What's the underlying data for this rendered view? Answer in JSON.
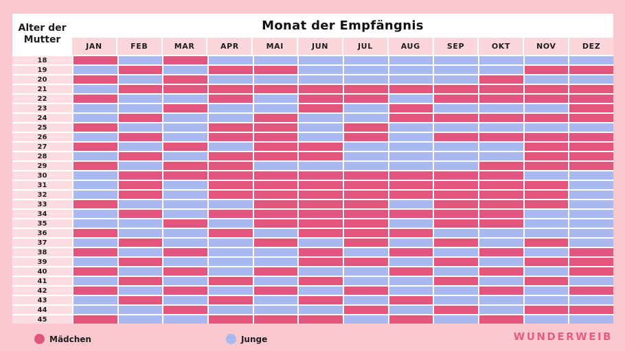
{
  "title": "Monat der Empfängnis",
  "row_header": "Alter der Mutter",
  "legend": {
    "girl_label": "Mädchen",
    "boy_label": "Junge"
  },
  "brand": "WUNDERWEIB",
  "colors": {
    "girl": "#e2557c",
    "boy": "#a9b9ef",
    "page_bg": "#f9c7ce",
    "month_band": "#fbd6da",
    "age_column": "#fcdee2",
    "brand_text": "#e85c80"
  },
  "chart_data": {
    "type": "heatmap",
    "title": "Monat der Empfängnis",
    "x_label": "Monat der Empfängnis",
    "y_label": "Alter der Mutter",
    "columns": [
      "JAN",
      "FEB",
      "MAR",
      "APR",
      "MAI",
      "JUN",
      "JUL",
      "AUG",
      "SEP",
      "OKT",
      "NOV",
      "DEZ"
    ],
    "rows": [
      18,
      19,
      20,
      21,
      22,
      23,
      24,
      25,
      26,
      27,
      28,
      29,
      30,
      31,
      32,
      33,
      34,
      35,
      36,
      37,
      38,
      39,
      40,
      41,
      42,
      43,
      44,
      45
    ],
    "cell_legend": {
      "M": "Mädchen",
      "J": "Junge"
    },
    "values": [
      "MJMJJJJJJJJJ",
      "JMJMMJJJJJMM",
      "MJMJJJJJJMJJ",
      "JMMMMMMMMMMM",
      "MJJMJMMJMMMM",
      "JJMJJMJMJJJM",
      "JMJJMJJMMMMM",
      "MJJMMJMJJJJJ",
      "JMJMMJMJMMMM",
      "MJMJMMJJJJMM",
      "JMJMMMJJJJMM",
      "MJMMJJJJJMMM",
      "JMMMMMMMMMJJ",
      "JMJMMMMMMMMJ",
      "JMJMMMMMMMMJ",
      "MJJJMMMJMMMJ",
      "JMJMMMMMMMJJ",
      "JJMJMMMJMMJJ",
      "MJJMJMMMJJJJ",
      "JMJJMJMJMJMJ",
      "MJMJJMJMJMJM",
      "JMJJJMMJMJMM",
      "MJMJMJJMJMJM",
      "JMJMJMJJMJMJ",
      "MJMJMJMJJMJM",
      "JMJMJMJMJJJJ",
      "JJMJJJMJMJMM",
      "MJJMMMJMJMJJ"
    ]
  }
}
